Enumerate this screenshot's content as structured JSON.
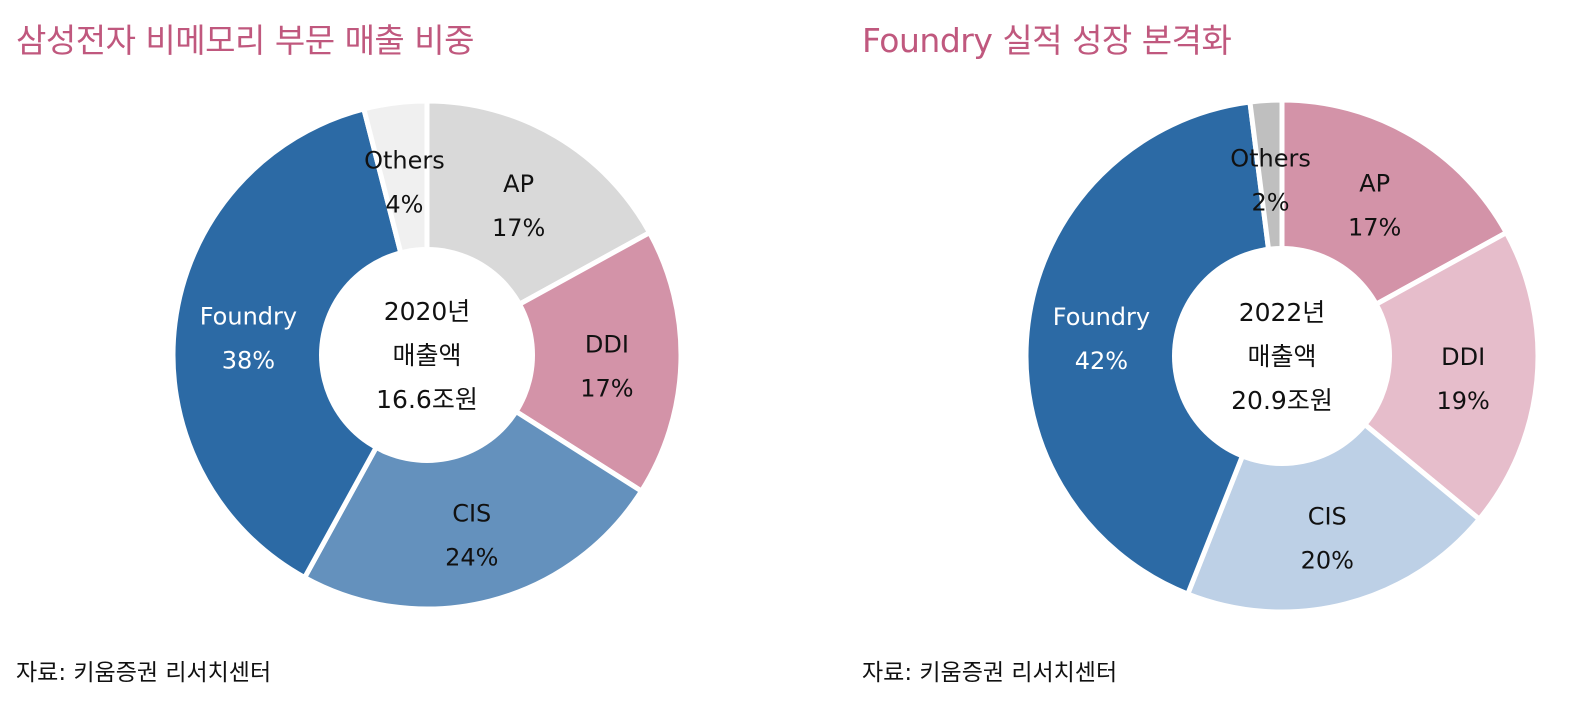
{
  "charts": [
    {
      "title": "삼성전자 비메모리 부문 매출 비중",
      "source": "자료: 키움증권 리서치센터",
      "center": [
        "2020년",
        "매출액",
        "16.6조원"
      ]
    },
    {
      "title": "Foundry 실적 성장 본격화",
      "source": "자료: 키움증권 리서치센터",
      "center": [
        "2022년",
        "매출액",
        "20.9조원"
      ]
    }
  ],
  "chart_data": [
    {
      "type": "pie",
      "title": "삼성전자 비메모리 부문 매출 비중",
      "center_label": "2020년 매출액 16.6조원",
      "categories": [
        "AP",
        "DDI",
        "CIS",
        "Foundry",
        "Others"
      ],
      "values": [
        17,
        17,
        24,
        38,
        4
      ],
      "value_labels": [
        "17%",
        "17%",
        "24%",
        "38%",
        "4%"
      ],
      "colors": [
        "#d9d9d9",
        "#d393a8",
        "#6491bd",
        "#2c6aa5",
        "#f0f0f0"
      ],
      "label_colors": [
        "#111111",
        "#111111",
        "#111111",
        "#ffffff",
        "#111111"
      ],
      "unit": "%"
    },
    {
      "type": "pie",
      "title": "Foundry 실적 성장 본격화",
      "center_label": "2022년 매출액 20.9조원",
      "categories": [
        "AP",
        "DDI",
        "CIS",
        "Foundry",
        "Others"
      ],
      "values": [
        17,
        19,
        20,
        42,
        2
      ],
      "value_labels": [
        "17%",
        "19%",
        "20%",
        "42%",
        "2%"
      ],
      "colors": [
        "#d393a8",
        "#e6bdcb",
        "#bdd0e6",
        "#2c6aa5",
        "#bfbfbf"
      ],
      "label_colors": [
        "#111111",
        "#111111",
        "#111111",
        "#ffffff",
        "#111111"
      ],
      "unit": "%"
    }
  ]
}
